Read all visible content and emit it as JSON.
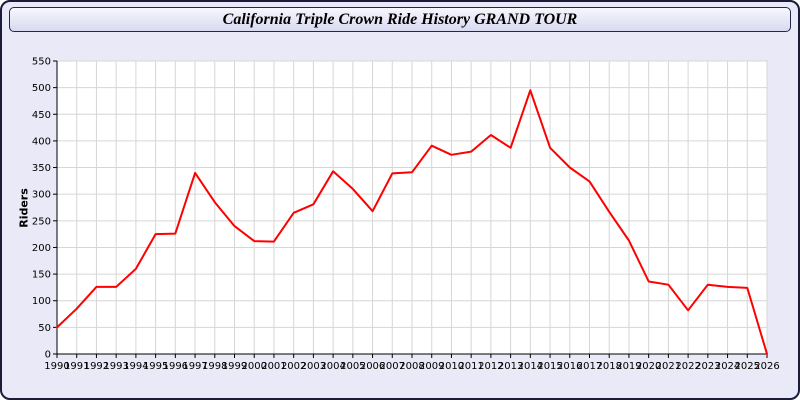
{
  "window": {
    "title": "California Triple Crown Ride History GRAND TOUR"
  },
  "colors": {
    "page_background": "#e9e9f7",
    "titlebar_fill": "#e3e3f4",
    "frame_border": "#1b1b3a",
    "plot_background": "#ffffff",
    "grid": "#d6d6d6",
    "axis": "#000000",
    "line": "#ff0000"
  },
  "chart_data": {
    "type": "line",
    "title": "California Triple Crown Ride History GRAND TOUR",
    "xlabel": "",
    "ylabel": "Riders",
    "ylim": [
      0,
      550
    ],
    "ytick_step": 50,
    "grid": true,
    "legend_position": "none",
    "x": [
      1990,
      1991,
      1992,
      1993,
      1994,
      1995,
      1996,
      1997,
      1998,
      1999,
      2000,
      2001,
      2002,
      2003,
      2004,
      2005,
      2006,
      2007,
      2008,
      2009,
      2010,
      2011,
      2012,
      2013,
      2014,
      2015,
      2016,
      2017,
      2018,
      2019,
      2020,
      2021,
      2022,
      2023,
      2024,
      2025,
      2026
    ],
    "series": [
      {
        "name": "Riders",
        "color": "#ff0000",
        "values": [
          50,
          85,
          126,
          126,
          160,
          225,
          226,
          340,
          285,
          240,
          212,
          211,
          265,
          281,
          343,
          310,
          268,
          339,
          341,
          391,
          374,
          380,
          411,
          387,
          495,
          387,
          350,
          324,
          267,
          213,
          136,
          130,
          82,
          130,
          126,
          124,
          0
        ]
      }
    ]
  }
}
